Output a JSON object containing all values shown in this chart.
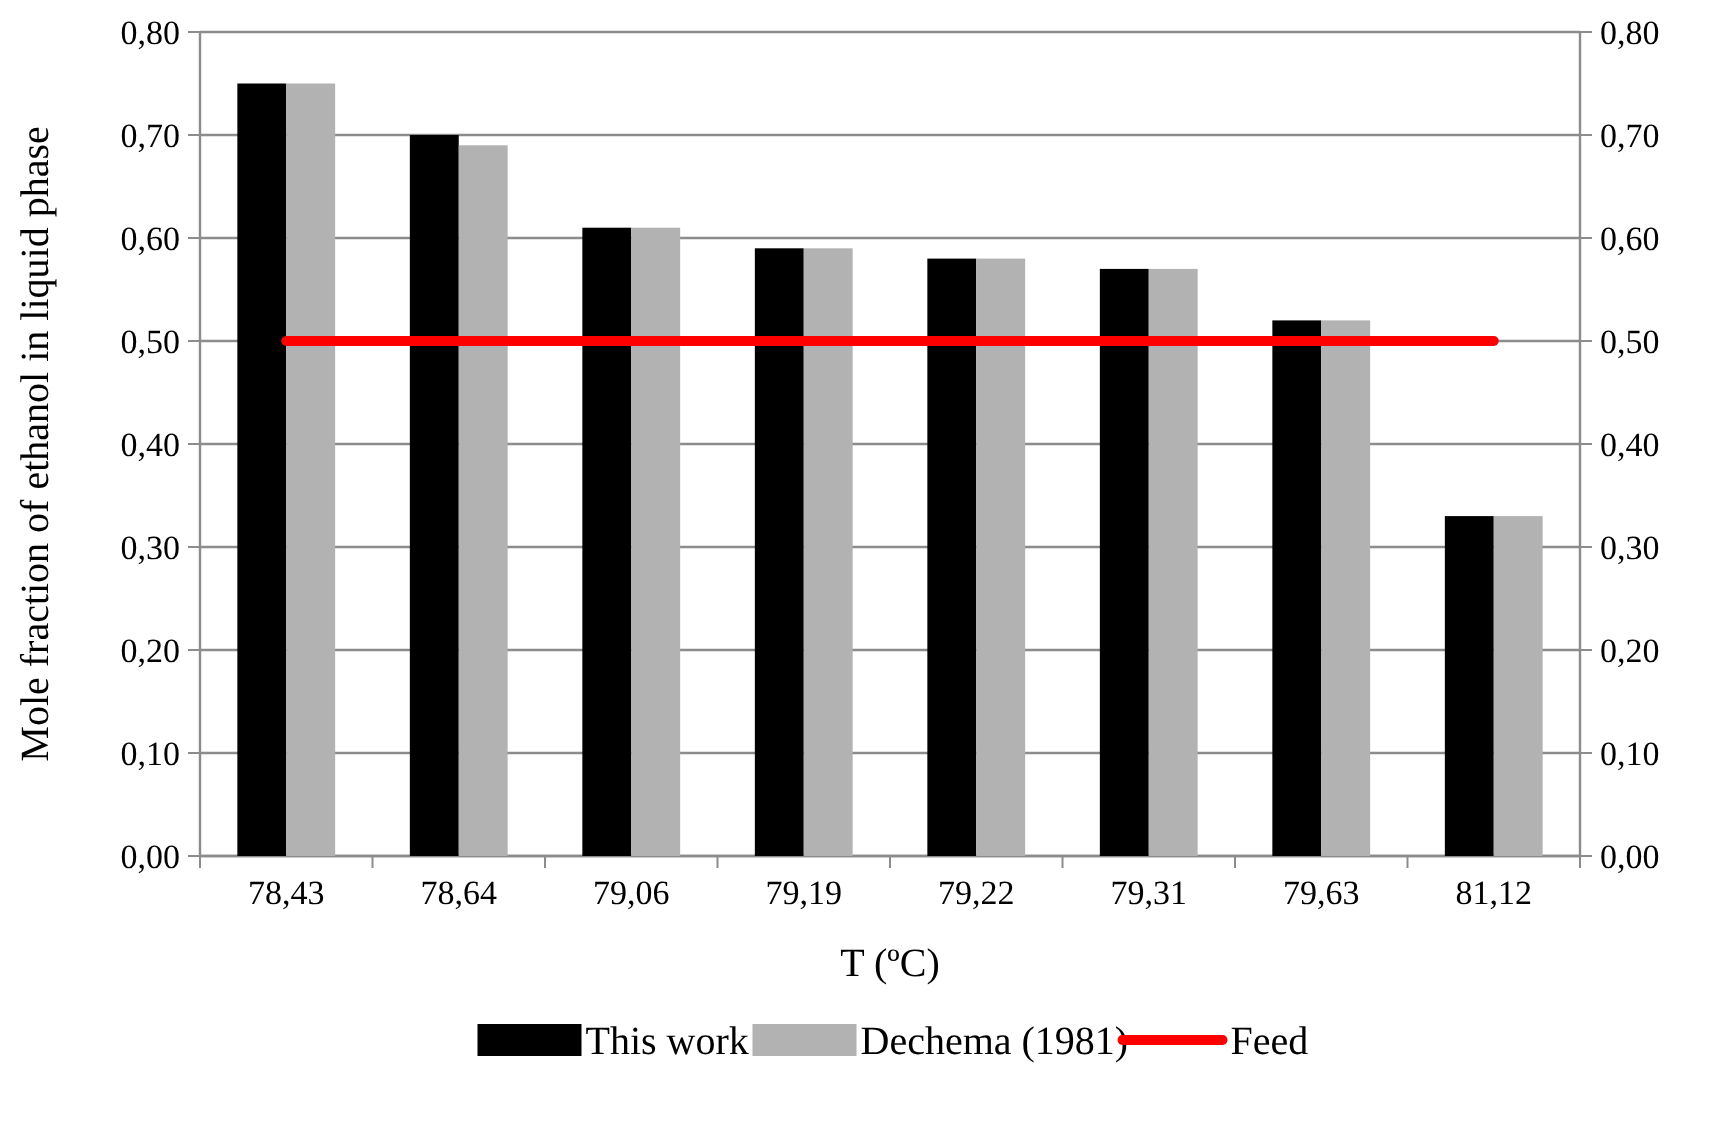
{
  "chart_data": {
    "type": "bar",
    "xlabel": "T (ºC)",
    "ylabel": "Mole fraction of ethanol in liquid phase",
    "categories": [
      "78,43",
      "78,64",
      "79,06",
      "79,19",
      "79,22",
      "79,31",
      "79,63",
      "81,12"
    ],
    "series": [
      {
        "name": "This work",
        "color": "#000000",
        "values": [
          0.75,
          0.7,
          0.61,
          0.59,
          0.58,
          0.57,
          0.52,
          0.33
        ]
      },
      {
        "name": "Dechema (1981)",
        "color": "#b2b2b2",
        "values": [
          0.75,
          0.69,
          0.61,
          0.59,
          0.58,
          0.57,
          0.52,
          0.33
        ]
      },
      {
        "name": "Feed",
        "type": "line",
        "color": "#ff0000",
        "values": [
          0.5,
          0.5,
          0.5,
          0.5,
          0.5,
          0.5,
          0.5,
          0.5
        ]
      }
    ],
    "ylim": [
      0,
      0.8
    ],
    "yticks": [
      {
        "value": 0,
        "label": "0,00"
      },
      {
        "value": 0.1,
        "label": "0,10"
      },
      {
        "value": 0.2,
        "label": "0,20"
      },
      {
        "value": 0.3,
        "label": "0,30"
      },
      {
        "value": 0.4,
        "label": "0,40"
      },
      {
        "value": 0.5,
        "label": "0,50"
      },
      {
        "value": 0.6,
        "label": "0,60"
      },
      {
        "value": 0.7,
        "label": "0,70"
      },
      {
        "value": 0.8,
        "label": "0,80"
      }
    ],
    "y2lim": [
      0,
      0.8
    ],
    "y2ticks": [
      {
        "value": 0,
        "label": "0,00"
      },
      {
        "value": 0.1,
        "label": "0,10"
      },
      {
        "value": 0.2,
        "label": "0,20"
      },
      {
        "value": 0.3,
        "label": "0,30"
      },
      {
        "value": 0.4,
        "label": "0,40"
      },
      {
        "value": 0.5,
        "label": "0,50"
      },
      {
        "value": 0.6,
        "label": "0,60"
      },
      {
        "value": 0.7,
        "label": "0,70"
      },
      {
        "value": 0.8,
        "label": "0,80"
      }
    ],
    "grid": "y",
    "legend": "bottom"
  }
}
